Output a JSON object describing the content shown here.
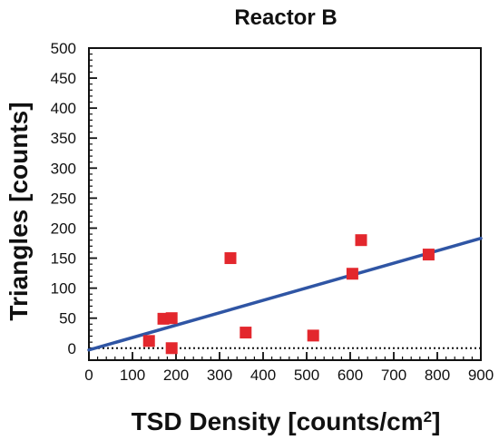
{
  "chart_data": {
    "type": "scatter",
    "title": "Reactor B",
    "xlabel": "TSD Density [counts/cm",
    "xlabel_superscript": "2",
    "xlabel_suffix": "]",
    "ylabel": "Triangles [counts]",
    "xlim": [
      0,
      900
    ],
    "ylim": [
      -20,
      500
    ],
    "xticks": [
      0,
      100,
      200,
      300,
      400,
      500,
      600,
      700,
      800,
      900
    ],
    "yticks": [
      0,
      50,
      100,
      150,
      200,
      250,
      300,
      350,
      400,
      450,
      500
    ],
    "grid": false,
    "marker_color": "#e3272d",
    "line_color": "#2f55a4",
    "points": [
      {
        "x": 138,
        "y": 12
      },
      {
        "x": 171,
        "y": 49
      },
      {
        "x": 190,
        "y": 50
      },
      {
        "x": 190,
        "y": 0
      },
      {
        "x": 325,
        "y": 150
      },
      {
        "x": 360,
        "y": 26
      },
      {
        "x": 515,
        "y": 21
      },
      {
        "x": 605,
        "y": 124
      },
      {
        "x": 625,
        "y": 180
      },
      {
        "x": 780,
        "y": 156
      }
    ],
    "fit_line": {
      "x": [
        0,
        900
      ],
      "y": [
        -3,
        183
      ]
    },
    "reference_line": {
      "y": 0,
      "style": "dotted"
    }
  }
}
